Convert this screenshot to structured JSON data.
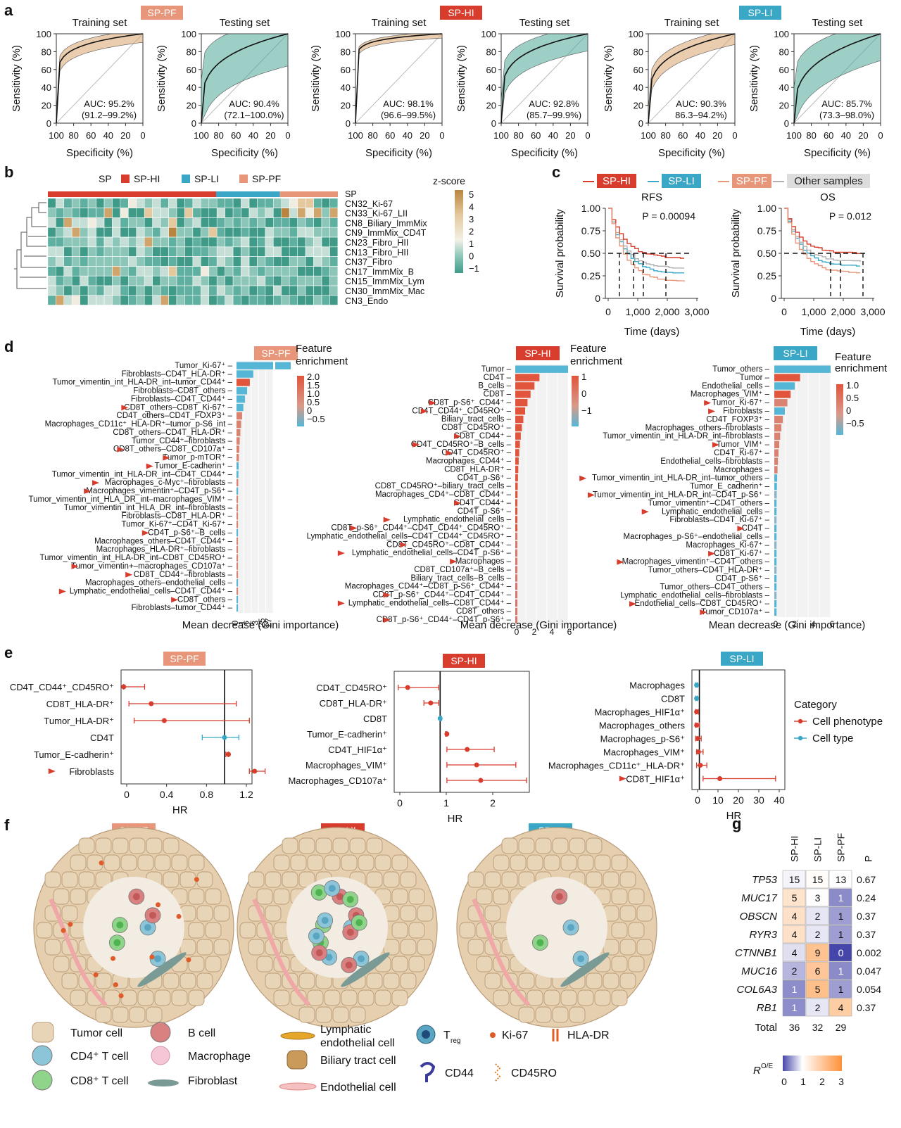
{
  "colors": {
    "pf": "#e8967a",
    "hi": "#d73c2c",
    "li": "#3aa7c7",
    "other": "#b0b0b0",
    "tan": "#d9a36b",
    "teal": "#4fa898"
  },
  "panel_labels": [
    "a",
    "b",
    "c",
    "d",
    "e",
    "f",
    "g"
  ],
  "panel_a": {
    "badges": [
      "SP-PF",
      "SP-HI",
      "SP-LI"
    ],
    "set_titles": [
      "Training set",
      "Testing set"
    ],
    "xlabel": "Specificity (%)",
    "ylabel": "Sensitivity (%)",
    "xticks": [
      "100",
      "80",
      "60",
      "40",
      "20",
      "0"
    ],
    "yticks": [
      "0",
      "20",
      "40",
      "60",
      "80",
      "100"
    ],
    "auc": [
      {
        "value": "AUC: 95.2%",
        "ci": "(91.2–99.2%)"
      },
      {
        "value": "AUC: 90.4%",
        "ci": "(72.1–100.0%)"
      },
      {
        "value": "AUC: 98.1%",
        "ci": "(96.6–99.5%)"
      },
      {
        "value": "AUC: 92.8%",
        "ci": "(85.7–99.9%)"
      },
      {
        "value": "AUC: 90.3%",
        "ci": "86.3–94.2%)"
      },
      {
        "value": "AUC: 85.7%",
        "ci": "(73.3–98.0%)"
      }
    ]
  },
  "panel_b": {
    "legend_title": "SP",
    "legend": [
      "SP-HI",
      "SP-LI",
      "SP-PF"
    ],
    "scale_title": "z-score",
    "scale_ticks": [
      "5",
      "4",
      "3",
      "2",
      "1",
      "0",
      "−1"
    ],
    "row_labels": [
      "SP",
      "CN32_Ki-67",
      "CN33_Ki-67_LII",
      "CN8_Biliary_ImmMix",
      "CN9_ImmMix_CD4T",
      "CN23_Fibro_HII",
      "CN13_Fibro_HII",
      "CN37_Fibro",
      "CN17_ImmMix_B",
      "CN15_ImmMix_Lym",
      "CN30_ImmMix_Mac",
      "CN3_Endo"
    ]
  },
  "panel_c": {
    "legend": [
      "SP-HI",
      "SP-LI",
      "SP-PF",
      "Other samples"
    ],
    "plots": [
      {
        "title": "RFS",
        "p": "P = 0.00094"
      },
      {
        "title": "OS",
        "p": "P = 0.012"
      }
    ],
    "ylabel": "Survival probability",
    "xlabel": "Time (days)",
    "yticks": [
      "0",
      "0.25",
      "0.50",
      "0.75",
      "1.00"
    ],
    "xticks": [
      "0",
      "1,000",
      "2,000",
      "3,000"
    ]
  },
  "panel_d": {
    "xlabel": "Mean decrease (Gini importance)",
    "enrich_title": "Feature enrichment",
    "groups": [
      {
        "badge": "SP-PF",
        "scale": [
          "2.0",
          "1.5",
          "1.0",
          "0.5",
          "0",
          "−0.5"
        ],
        "xticks": [
          "0",
          "1",
          "2",
          "3",
          "25",
          "27"
        ],
        "features": [
          "Tumor_Ki-67⁺",
          "Fibroblasts–CD4T_HLA-DR⁺",
          "Tumor_vimentin_int_HLA-DR_int–tumor_CD44⁺",
          "Fibroblasts–CD8T_others",
          "Fibroblasts–CD4T_CD44⁺",
          "CD8T_others–CD8T_Ki-67⁺",
          "CD4T_others–CD4T_FOXP3⁺",
          "Macrophages_CD11c⁺_HLA-DR⁺–tumor_p-S6_int",
          "CD8T_others–CD4T_HLA-DR⁺",
          "Tumor_CD44⁺–fibroblasts",
          "CD8T_others–CD8T_CD107a⁺",
          "Tumor_p-mTOR⁺",
          "Tumor_E-cadherin⁺",
          "Tumor_vimentin_int_HLA-DR_int–CD4T_CD44⁺",
          "Macrophages_c-Myc⁺–fibroblasts",
          "Macrophages_vimentin⁺–CD4T_p-S6⁺",
          "Tumor_vimentin_int_HLA_DR_int–macrophages_VIM⁺",
          "Tumor_vimentin_int_HLA_DR_int–fibroblasts",
          "Fibroblasts–CD8T_HLA-DR⁺",
          "Tumor_Ki-67⁺–CD4T_Ki-67⁺",
          "CD4T_p-S6⁺–B_cells",
          "Macrophages_others–CD4T_CD44⁺",
          "Macrophages_HLA-DR⁺–fibroblasts",
          "Tumor_vimentin_int_HLA-DR_int–CD8T_CD45RO⁺",
          "Tumor_vimentin+–macrophages_CD107a⁺",
          "CD8T_CD44⁺–fibroblasts",
          "Macrophages_others–endothelial_cells",
          "Lymphatic_endothelial_cells–CD4T_CD44⁺",
          "CD8T_others",
          "Fibroblasts–tumor_CD44⁺"
        ]
      },
      {
        "badge": "SP-HI",
        "scale": [
          "1",
          "0",
          "−1"
        ],
        "xticks": [
          "0",
          "2",
          "4",
          "6"
        ],
        "features": [
          "Tumor",
          "CD4T",
          "B_cells",
          "CD8T",
          "CD8T_p-S6⁺_CD44⁺",
          "CD4T_CD44⁺_CD45RO⁺",
          "Biliary_tract_cells",
          "CD8T_CD45RO⁺",
          "CD8T_CD44⁺",
          "CD4T_CD45RO⁺–B_cells",
          "CD4T_CD45RO⁺",
          "Macrophages_CD44⁺",
          "CD8T_HLA-DR⁺",
          "CD4T_p-S6⁺",
          "CD8T_CD45RO⁺–biliary_tract_cells",
          "Macrophages_CD4⁺–CD8T_CD44⁺",
          "CD4T_CD44⁺",
          "CD4T_p-S6⁺",
          "Lymphatic_endothelial_cells",
          "CD8T_p-S6⁺_CD44⁺–CD4T_CD44⁺_CD45RO⁺",
          "Lymphatic_endothelial_cells–CD4T_CD44⁺_CD45RO⁺",
          "CD8T_CD45RO⁺–CD8T_CD44⁺",
          "Lymphatic_endothelial_cells–CD4T_p-S6⁺",
          "Macrophages",
          "CD8T_CD107a⁺–B_cells",
          "Biliary_tract_cells–B_cells",
          "Macrophages_CD44⁺–CD8T_p-S6⁺_CD44⁺",
          "CD8T_p-S6⁺_CD44⁺–CD4T_CD44⁺",
          "Lymphatic_endothelial_cells–CD8T_CD44⁺",
          "CD8T_others",
          "CD8T_p-S6⁺_CD44⁺–CD4T_p-S6⁺"
        ]
      },
      {
        "badge": "SP-LI",
        "scale": [
          "1.0",
          "0.5",
          "0",
          "−0.5"
        ],
        "xticks": [
          "0",
          "2",
          "4",
          "6"
        ],
        "features": [
          "Tumor_others",
          "Tumor",
          "Endothelial_cells",
          "Macrophages_VIM⁺",
          "Tumor_Ki-67⁺",
          "Fibroblasts",
          "CD4T_FOXP3⁺",
          "Macrophages_others–fibroblasts",
          "Tumor_vimentin_int_HLA-DR_int–fibroblasts",
          "Tumor_VIM⁺",
          "CD4T_Ki-67⁺",
          "Endothelial_cells–fibroblasts",
          "Macrophages",
          "Tumor_vimentin_int_HLA-DR_int–tumor_others",
          "Tumor_E_cadherin⁺",
          "Tumor_vimentin_int_HLA-DR_int–CD4T_p-S6⁺",
          "Tumor_vimentin⁺–CD4T_others",
          "Lymphatic_endothelial_cells",
          "Fibroblasts–CD4T_Ki-67⁺",
          "CD4T",
          "Macrophages_p-S6⁺–endothelial_cells",
          "Macrophages_Ki-67⁺",
          "CD8T_Ki-67⁺",
          "Macrophages_vimentin⁺–CD4T_others",
          "Tumor_others–CD4T_HLA-DR⁺",
          "CD4T_p-S6⁺",
          "Tumor_others–CD4T_others",
          "Lymphatic_endothelial_cells–fibroblasts",
          "Endothelial_cells–CD8T_CD45RO⁺",
          "Tumor_CD107a⁺"
        ]
      }
    ]
  },
  "panel_e": {
    "xlabel": "HR",
    "category_title": "Category",
    "categories": [
      "Cell phenotype",
      "Cell type"
    ],
    "groups": [
      {
        "badge": "SP-PF",
        "labels": [
          "CD4T_CD44⁺_CD45RO⁺",
          "CD8T_HLA-DR⁺",
          "Tumor_HLA-DR⁺",
          "CD4T",
          "Tumor_E-cadherin⁺",
          "Fibroblasts"
        ],
        "xticks": [
          "0",
          "0.4",
          "0.8",
          "1.2"
        ]
      },
      {
        "badge": "SP-HI",
        "labels": [
          "CD4T_CD45RO⁺",
          "CD8T_HLA-DR⁺",
          "CD8T",
          "Tumor_E-cadherin⁺",
          "CD4T_HIF1α⁺",
          "Macrophages_VIM⁺",
          "Macrophages_CD107a⁺"
        ],
        "xticks": [
          "0",
          "1",
          "2"
        ]
      },
      {
        "badge": "SP-LI",
        "labels": [
          "Macrophages",
          "CD8T",
          "Macrophages_HIF1α⁺",
          "Macrophages_others",
          "Macrophages_p-S6⁺",
          "Macrophages_VIM⁺",
          "Macrophages_CD11c⁺_HLA-DR⁺",
          "CD8T_HIF1α⁺"
        ],
        "xticks": [
          "0",
          "10",
          "20",
          "30",
          "40"
        ]
      }
    ]
  },
  "panel_f": {
    "badges": [
      "SP-PF",
      "SP-HI",
      "SP-LI"
    ],
    "legend": [
      "Tumor cell",
      "CD4⁺ T cell",
      "CD8⁺ T cell",
      "B cell",
      "Macrophage",
      "Fibroblast",
      "Lymphatic",
      "endothelial cell",
      "Biliary tract cell",
      "Endothelial cell",
      "T",
      "reg",
      "Ki-67",
      "HLA-DR",
      "CD44",
      "CD45RO"
    ]
  },
  "panel_g": {
    "columns": [
      "SP-HI",
      "SP-LI",
      "SP-PF",
      "P"
    ],
    "genes": [
      "TP53",
      "MUC17",
      "OBSCN",
      "RYR3",
      "CTNNB1",
      "MUC16",
      "COL6A3",
      "RB1"
    ],
    "counts": [
      [
        15,
        15,
        13
      ],
      [
        5,
        3,
        1
      ],
      [
        4,
        2,
        1
      ],
      [
        4,
        2,
        1
      ],
      [
        4,
        9,
        0
      ],
      [
        2,
        6,
        1
      ],
      [
        1,
        5,
        1
      ],
      [
        1,
        2,
        4
      ]
    ],
    "p_values": [
      "0.67",
      "0.24",
      "0.37",
      "0.37",
      "0.002",
      "0.047",
      "0.054",
      "0.37"
    ],
    "total_label": "Total",
    "totals": [
      "36",
      "32",
      "29"
    ],
    "scale_label": "R",
    "scale_sup": "O/E",
    "scale_ticks": [
      "0",
      "1",
      "2",
      "3"
    ]
  }
}
